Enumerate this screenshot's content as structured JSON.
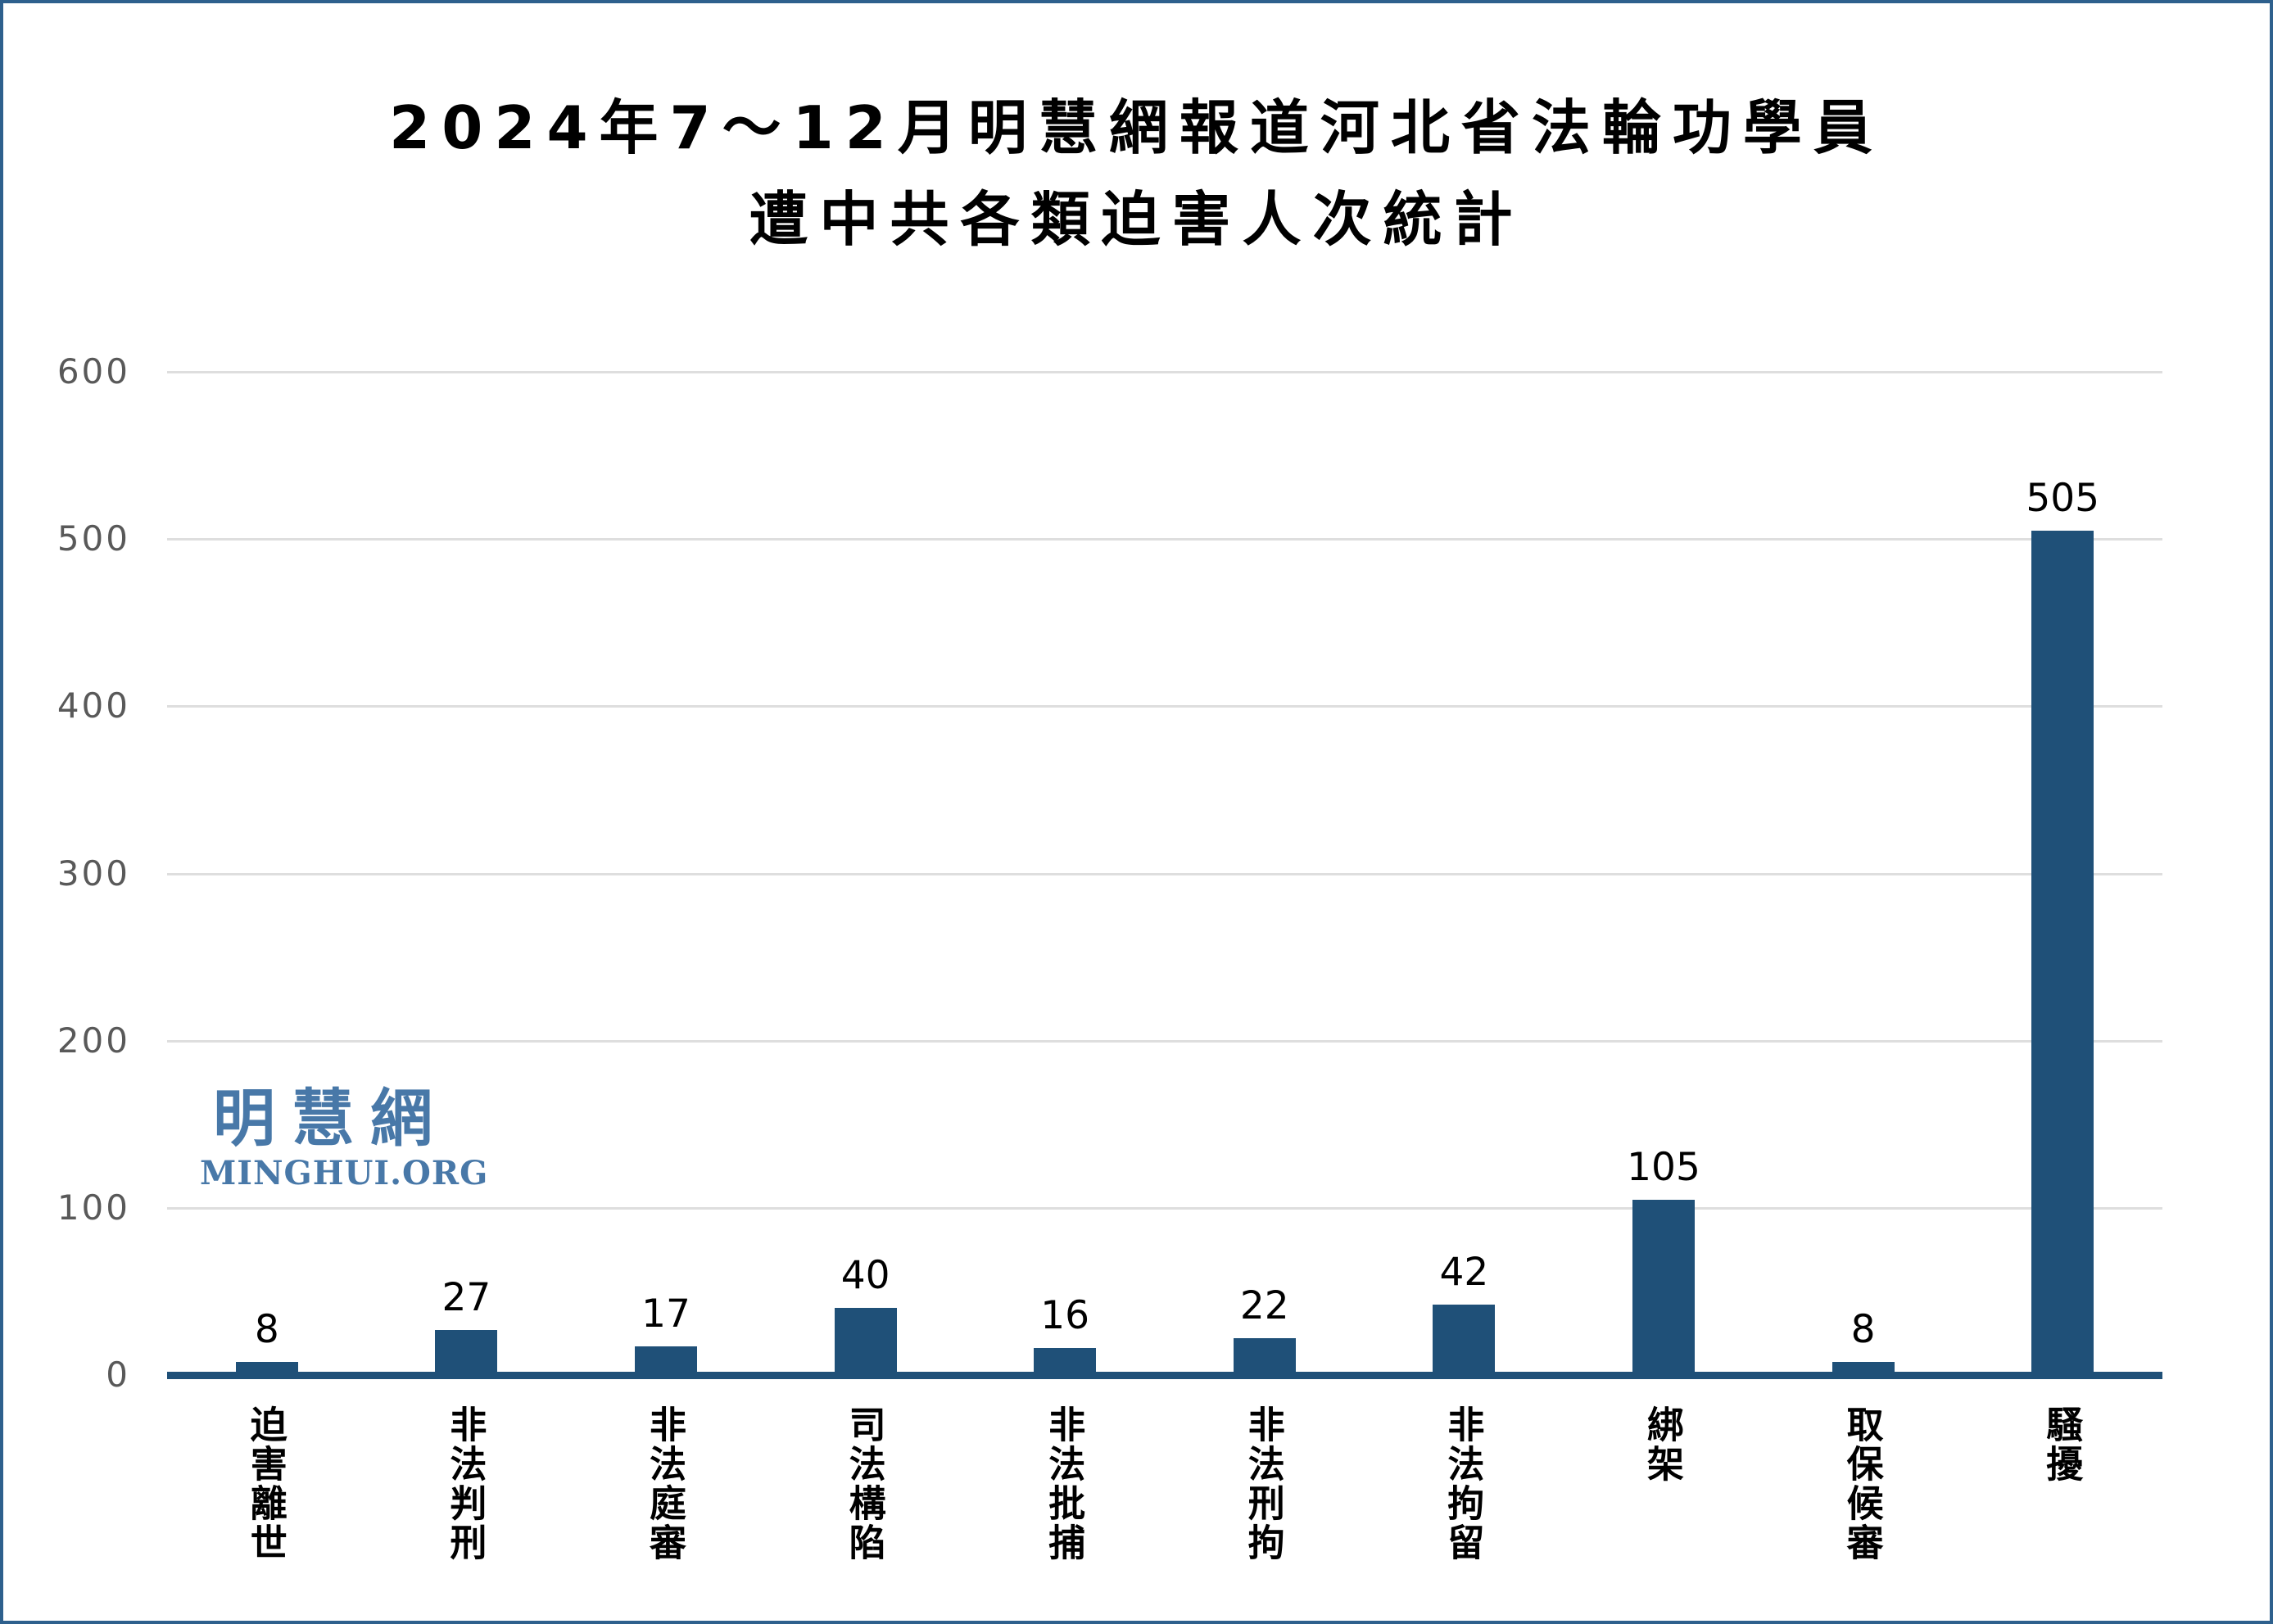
{
  "title": {
    "line1": "2024年7～12月明慧網報道河北省法輪功學員",
    "line2": "遭中共各類迫害人次統計"
  },
  "watermark": {
    "cjk": "明慧網",
    "latin": "MINGHUI.ORG"
  },
  "colors": {
    "bar": "#1f5078",
    "axis_line": "#1f5078",
    "gridline": "#dedede",
    "y_tick_label": "#595959",
    "value_label": "#000000",
    "title": "#000000",
    "watermark": "#4878a8",
    "frame_border": "#2e608d",
    "background": "#ffffff"
  },
  "chart_data": {
    "type": "bar",
    "title": "2024年7～12月明慧網報道河北省法輪功學員遭中共各類迫害人次統計",
    "categories": [
      "迫害離世",
      "非法判刑",
      "非法庭審",
      "司法構陷",
      "非法批捕",
      "非法刑拘",
      "非法拘留",
      "綁架",
      "取保候審",
      "騷擾"
    ],
    "values": [
      8,
      27,
      17,
      40,
      16,
      22,
      42,
      105,
      8,
      505
    ],
    "xlabel": "",
    "ylabel": "",
    "ylim": [
      0,
      600
    ],
    "y_ticks": [
      600,
      500,
      400,
      300,
      200,
      100,
      0
    ],
    "grid": true,
    "legend": false,
    "value_labels_shown": true,
    "x_label_orientation": "vertical"
  }
}
